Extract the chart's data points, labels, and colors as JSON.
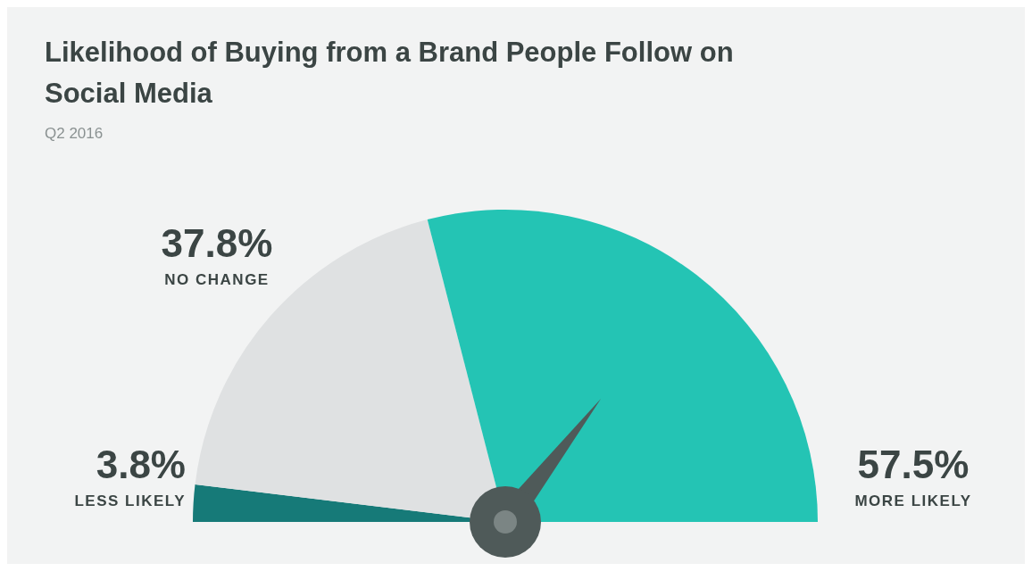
{
  "chart_data": {
    "type": "pie",
    "title": "Likelihood of Buying from a Brand People Follow on Social Media",
    "subtitle": "Q2 2016",
    "categories": [
      "LESS LIKELY",
      "NO CHANGE",
      "MORE LIKELY"
    ],
    "values": [
      3.8,
      37.8,
      57.5
    ],
    "colors": [
      "#167a78",
      "#dfe1e2",
      "#24c4b4"
    ],
    "value_labels": [
      "3.8%",
      "37.8%",
      "57.5%"
    ],
    "needle": "MORE LIKELY",
    "legend": false
  }
}
